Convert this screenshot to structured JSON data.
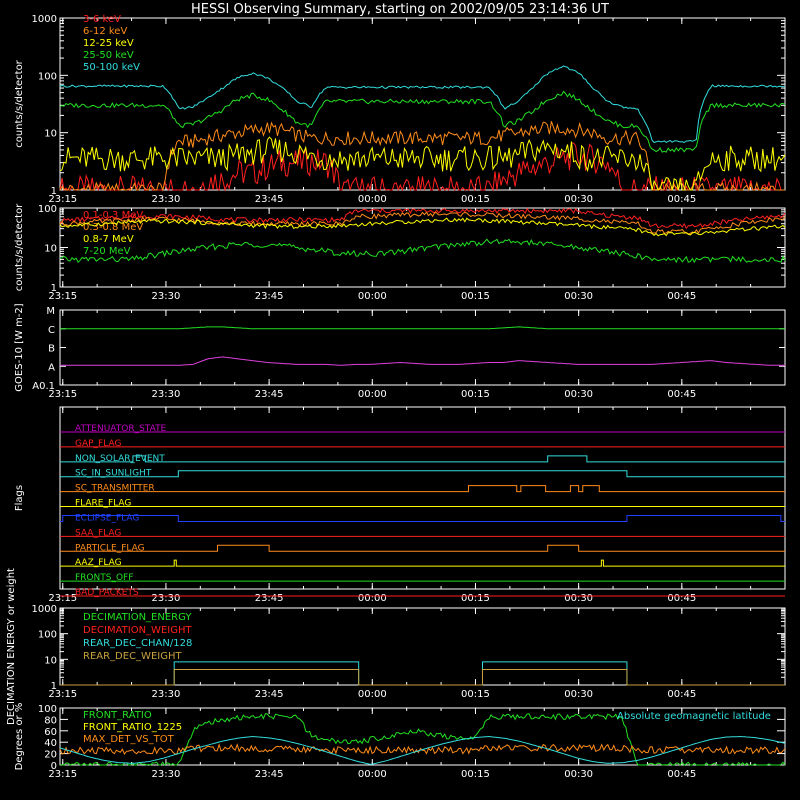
{
  "title": "HESSI Observing Summary, starting on 2002/09/05 23:14:36 UT",
  "time_ticks": [
    "23:15",
    "23:30",
    "23:45",
    "00:00",
    "00:15",
    "00:30",
    "00:45"
  ],
  "chart_data": [
    {
      "type": "line",
      "ylabel": "counts/s/detector",
      "yscale": "log",
      "ylim": [
        1,
        1000
      ],
      "yticks": [
        "1",
        "10",
        "100",
        "1000"
      ],
      "series": [
        {
          "name": "3-6 keV",
          "color": "#ff2020",
          "values": [
            1,
            1,
            1,
            1,
            1,
            1,
            1,
            1,
            1,
            1,
            1.5,
            1.5,
            2,
            2,
            2.5,
            3,
            3,
            3.2,
            3,
            1,
            1,
            1,
            1,
            1,
            1,
            1,
            1,
            1,
            1,
            1,
            1.5,
            2,
            2.5,
            3,
            3.5,
            4,
            3.5,
            3,
            1,
            1,
            1,
            1,
            1,
            1,
            1,
            1,
            1,
            1,
            1,
            1
          ]
        },
        {
          "name": "6-12 keV",
          "color": "#ff8c1a",
          "values": [
            1,
            1,
            1,
            1,
            1,
            1,
            1,
            1,
            7,
            7,
            8,
            9,
            10,
            11,
            12,
            11,
            9,
            8,
            8,
            8,
            8,
            8,
            8,
            8,
            8,
            8,
            8,
            8,
            8,
            8,
            9,
            10,
            11,
            12,
            12,
            11,
            10,
            8,
            8,
            8,
            1,
            1,
            1,
            1,
            1,
            1,
            1,
            1,
            1,
            1
          ]
        },
        {
          "name": "12-25 keV",
          "color": "#ffff00",
          "values": [
            3.5,
            3.5,
            3.5,
            3.5,
            3.5,
            3.5,
            3.5,
            3.5,
            3.5,
            3.5,
            3.5,
            3.5,
            4,
            4.5,
            5,
            5,
            4.5,
            4,
            3.5,
            3.5,
            3.5,
            3.5,
            3.5,
            3.5,
            3.5,
            3.5,
            3.5,
            3.5,
            3.5,
            3.5,
            3.5,
            4,
            5,
            5.5,
            5,
            4,
            3.5,
            3.5,
            3.5,
            3.5,
            1,
            1,
            1,
            1,
            3.5,
            3.5,
            3.5,
            3.5,
            3.5,
            3.5
          ]
        },
        {
          "name": "25-50 keV",
          "color": "#22e022",
          "values": [
            30,
            30,
            30,
            30,
            30,
            30,
            30,
            30,
            13,
            14,
            18,
            25,
            38,
            45,
            38,
            25,
            15,
            13,
            35,
            35,
            35,
            35,
            35,
            35,
            35,
            35,
            35,
            35,
            35,
            35,
            13,
            16,
            24,
            38,
            50,
            38,
            24,
            16,
            13,
            13,
            5,
            5,
            5,
            5,
            30,
            30,
            30,
            30,
            30,
            30
          ]
        },
        {
          "name": "50-100 keV",
          "color": "#33dddd",
          "values": [
            65,
            65,
            65,
            65,
            65,
            65,
            65,
            65,
            26,
            28,
            40,
            60,
            90,
            110,
            90,
            60,
            35,
            28,
            62,
            62,
            62,
            62,
            62,
            62,
            62,
            62,
            62,
            62,
            62,
            62,
            26,
            35,
            60,
            110,
            145,
            110,
            60,
            35,
            28,
            26,
            7,
            7,
            7,
            7,
            65,
            65,
            65,
            65,
            65,
            65
          ]
        }
      ]
    },
    {
      "type": "line",
      "ylabel": "counts/s/detector",
      "yscale": "log",
      "ylim": [
        1,
        100
      ],
      "yticks": [
        "1",
        "10",
        "100"
      ],
      "series": [
        {
          "name": "0.1-0.3 MeV",
          "color": "#ff2020",
          "values": [
            48,
            50,
            52,
            55,
            58,
            60,
            62,
            62,
            60,
            58,
            55,
            52,
            50,
            50,
            50,
            50,
            50,
            50,
            50,
            50,
            85,
            85,
            85,
            85,
            85,
            85,
            85,
            85,
            85,
            85,
            85,
            85,
            85,
            85,
            85,
            85,
            70,
            65,
            60,
            58,
            35,
            35,
            35,
            35,
            40,
            45,
            50,
            55,
            60,
            65
          ]
        },
        {
          "name": "0.3-0.8 MeV",
          "color": "#ff8c1a",
          "values": [
            40,
            42,
            44,
            46,
            48,
            50,
            52,
            52,
            50,
            48,
            45,
            42,
            40,
            40,
            40,
            40,
            40,
            40,
            40,
            40,
            60,
            62,
            64,
            66,
            68,
            70,
            70,
            70,
            68,
            66,
            64,
            62,
            60,
            58,
            56,
            54,
            50,
            46,
            42,
            40,
            25,
            25,
            25,
            25,
            30,
            35,
            40,
            45,
            50,
            55
          ]
        },
        {
          "name": "0.8-7 MeV",
          "color": "#ffff00",
          "values": [
            35,
            36,
            38,
            40,
            42,
            44,
            46,
            46,
            45,
            44,
            42,
            40,
            38,
            36,
            35,
            34,
            34,
            34,
            35,
            36,
            38,
            40,
            42,
            44,
            46,
            48,
            50,
            50,
            50,
            48,
            46,
            44,
            42,
            40,
            38,
            36,
            34,
            32,
            30,
            28,
            22,
            22,
            22,
            22,
            24,
            26,
            28,
            30,
            32,
            34
          ]
        },
        {
          "name": "7-20 MeV",
          "color": "#22e022",
          "values": [
            5,
            5,
            5,
            5,
            5,
            5,
            6,
            7,
            8,
            9,
            10,
            11,
            12,
            12,
            12,
            11,
            10,
            9,
            8,
            7,
            7,
            7,
            7,
            8,
            9,
            10,
            11,
            12,
            13,
            14,
            14,
            14,
            13,
            12,
            11,
            10,
            9,
            8,
            7,
            6,
            5,
            5,
            5,
            5,
            5,
            5,
            5,
            5,
            5,
            5
          ]
        }
      ]
    },
    {
      "type": "line",
      "ylabel": "GOES-10 [W m-2]",
      "yticklabels": [
        "A0.1",
        "A",
        "B",
        "C",
        "M"
      ],
      "series": [
        {
          "color": "#22e022",
          "values": [
            3.0,
            3.0,
            3.0,
            3.0,
            3.0,
            3.0,
            3.0,
            3.0,
            3.0,
            3.05,
            3.1,
            3.1,
            3.05,
            3.0,
            3.0,
            3.0,
            3.0,
            3.0,
            3.0,
            3.0,
            3.0,
            3.0,
            3.0,
            3.0,
            3.0,
            3.0,
            3.0,
            3.0,
            3.0,
            3.0,
            3.05,
            3.1,
            3.05,
            3.0,
            3.0,
            3.0,
            3.0,
            3.0,
            3.0,
            3.0,
            3.0,
            3.0,
            3.0,
            3.0,
            3.0,
            3.0,
            3.0,
            3.0,
            3.0,
            3.0
          ]
        },
        {
          "color": "#e040e0",
          "values": [
            1.05,
            1.05,
            1.05,
            1.05,
            1.05,
            1.05,
            1.05,
            1.05,
            1.05,
            1.1,
            1.4,
            1.5,
            1.4,
            1.3,
            1.2,
            1.15,
            1.1,
            1.1,
            1.1,
            1.05,
            1.1,
            1.1,
            1.15,
            1.2,
            1.15,
            1.1,
            1.1,
            1.1,
            1.15,
            1.2,
            1.2,
            1.3,
            1.25,
            1.2,
            1.15,
            1.1,
            1.1,
            1.1,
            1.1,
            1.1,
            1.1,
            1.15,
            1.2,
            1.25,
            1.3,
            1.2,
            1.15,
            1.1,
            1.05,
            1.05
          ]
        }
      ]
    },
    {
      "type": "line",
      "ylabel": "Flags",
      "series": [
        {
          "name": "ATTENUATOR_STATE",
          "color": "#c000c0",
          "segments": []
        },
        {
          "name": "GAP_FLAG",
          "color": "#ff2020",
          "segments": []
        },
        {
          "name": "NON_SOLAR_EVENT",
          "color": "#33dddd",
          "segments": [
            [
              23.42,
              23.45
            ],
            [
              24.425,
              24.52
            ]
          ]
        },
        {
          "name": "SC_IN_SUNLIGHT",
          "color": "#33dddd",
          "segments": [
            [
              23.53,
              24.617
            ]
          ]
        },
        {
          "name": "SC_TRANSMITTER",
          "color": "#ff8c1a",
          "segments": [
            [
              24.233,
              24.35
            ],
            [
              24.36,
              24.42
            ],
            [
              24.48,
              24.5
            ],
            [
              24.51,
              24.55
            ]
          ]
        },
        {
          "name": "FLARE_FLAG",
          "color": "#ffff00",
          "segments": []
        },
        {
          "name": "ECLIPSE_FLAG",
          "color": "#2040ff",
          "segments": [
            [
              23.25,
              23.53
            ],
            [
              24.617,
              24.99
            ]
          ]
        },
        {
          "name": "SAA_FLAG",
          "color": "#ff2020",
          "segments": []
        },
        {
          "name": "PARTICLE_FLAG",
          "color": "#ff8c1a",
          "segments": [
            [
              23.625,
              23.75
            ],
            [
              24.425,
              24.5
            ]
          ]
        },
        {
          "name": "AAZ_FLAG",
          "color": "#ffff00",
          "segments": [
            [
              23.52,
              23.525
            ],
            [
              24.555,
              24.56
            ]
          ]
        },
        {
          "name": "FRONTS_OFF",
          "color": "#22e022",
          "segments": []
        },
        {
          "name": "BAD_PACKETS",
          "color": "#ff2020",
          "segments": []
        }
      ]
    },
    {
      "type": "line",
      "ylabel": "DECIMATION ENERGY or weight",
      "yscale": "log",
      "ylim": [
        1,
        1000
      ],
      "yticks": [
        "1",
        "10",
        "100",
        "1000"
      ],
      "series": [
        {
          "name": "DECIMATION_ENERGY",
          "color": "#22e022",
          "segments": []
        },
        {
          "name": "DECIMATION_WEIGHT",
          "color": "#ff2020",
          "segments": []
        },
        {
          "name": "REAR_DEC_CHAN/128",
          "color": "#33dddd",
          "level": 8,
          "segments": [
            [
              23.52,
              23.967
            ],
            [
              24.267,
              24.617
            ]
          ]
        },
        {
          "name": "REAR_DEC_WEIGHT",
          "color": "#c8a040",
          "level": 4,
          "segments": [
            [
              23.52,
              23.967
            ],
            [
              24.267,
              24.617
            ]
          ]
        }
      ]
    },
    {
      "type": "line",
      "ylabel": "Degrees or %",
      "ylim": [
        0,
        100
      ],
      "yticks": [
        "0",
        "20",
        "40",
        "60",
        "80",
        "100"
      ],
      "annotation": "Absolute geomagnetic latitude",
      "series": [
        {
          "name": "FRONT_RATIO",
          "color": "#22e022",
          "values": [
            0,
            0,
            0,
            0,
            0,
            0,
            0,
            0,
            0,
            60,
            75,
            80,
            82,
            85,
            85,
            85,
            85,
            50,
            45,
            40,
            40,
            45,
            50,
            55,
            60,
            55,
            50,
            45,
            50,
            85,
            85,
            85,
            85,
            85,
            85,
            85,
            85,
            85,
            85,
            0,
            0,
            0,
            0,
            0,
            0,
            0,
            0,
            0,
            0,
            0
          ]
        },
        {
          "name": "FRONT_RATIO_1225",
          "color": "#ffff00",
          "values": []
        },
        {
          "name": "MAX_DET_VS_TOT",
          "color": "#ff8c1a",
          "values": [
            25,
            25,
            25,
            25,
            25,
            25,
            25,
            25,
            25,
            28,
            30,
            30,
            30,
            28,
            28,
            28,
            28,
            28,
            26,
            26,
            26,
            26,
            26,
            26,
            26,
            26,
            26,
            26,
            26,
            30,
            30,
            30,
            30,
            30,
            30,
            30,
            30,
            30,
            30,
            26,
            26,
            26,
            26,
            26,
            26,
            26,
            26,
            26,
            26,
            26
          ]
        },
        {
          "name": "",
          "color": "#33dddd",
          "values": [
            30,
            22,
            14,
            8,
            4,
            3,
            6,
            12,
            20,
            28,
            35,
            42,
            47,
            50,
            48,
            44,
            38,
            31,
            23,
            15,
            7,
            1,
            7,
            15,
            23,
            31,
            38,
            44,
            48,
            50,
            47,
            42,
            35,
            28,
            20,
            12,
            6,
            3,
            4,
            8,
            14,
            22,
            30,
            38,
            45,
            49,
            50,
            48,
            44,
            38
          ]
        }
      ]
    }
  ]
}
